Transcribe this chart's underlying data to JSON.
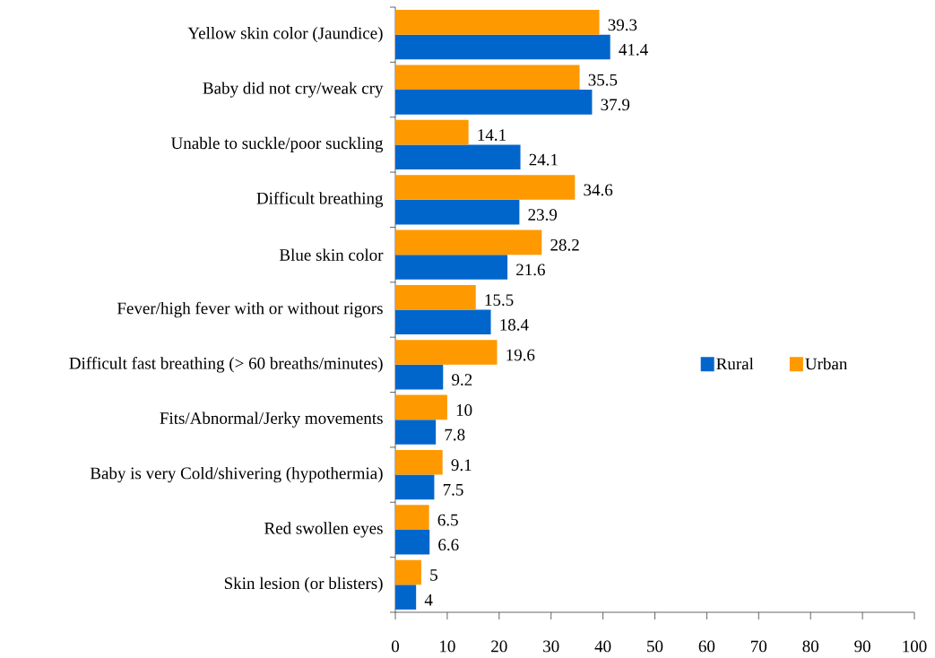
{
  "chart_data": {
    "type": "bar",
    "orientation": "horizontal",
    "categories": [
      "Yellow skin color (Jaundice)",
      "Baby did not cry/weak cry",
      "Unable to suckle/poor suckling",
      "Difficult breathing",
      "Blue skin color",
      "Fever/high fever with or without rigors",
      "Difficult fast breathing (> 60 breaths/minutes)",
      "Fits/Abnormal/Jerky movements",
      "Baby is very Cold/shivering (hypothermia)",
      "Red swollen eyes",
      "Skin lesion (or blisters)"
    ],
    "series": [
      {
        "name": "Rural",
        "color": "#0066cc",
        "values": [
          41.4,
          37.9,
          24.1,
          23.9,
          21.6,
          18.4,
          9.2,
          7.8,
          7.5,
          6.6,
          4
        ]
      },
      {
        "name": "Urban",
        "color": "#ff9900",
        "values": [
          39.3,
          35.5,
          14.1,
          34.6,
          28.2,
          15.5,
          19.6,
          10,
          9.1,
          6.5,
          5
        ]
      }
    ],
    "xlim": [
      0,
      100
    ],
    "xticks": [
      0,
      10,
      20,
      30,
      40,
      50,
      60,
      70,
      80,
      90,
      100
    ],
    "data_labels": true,
    "legend": "right"
  }
}
